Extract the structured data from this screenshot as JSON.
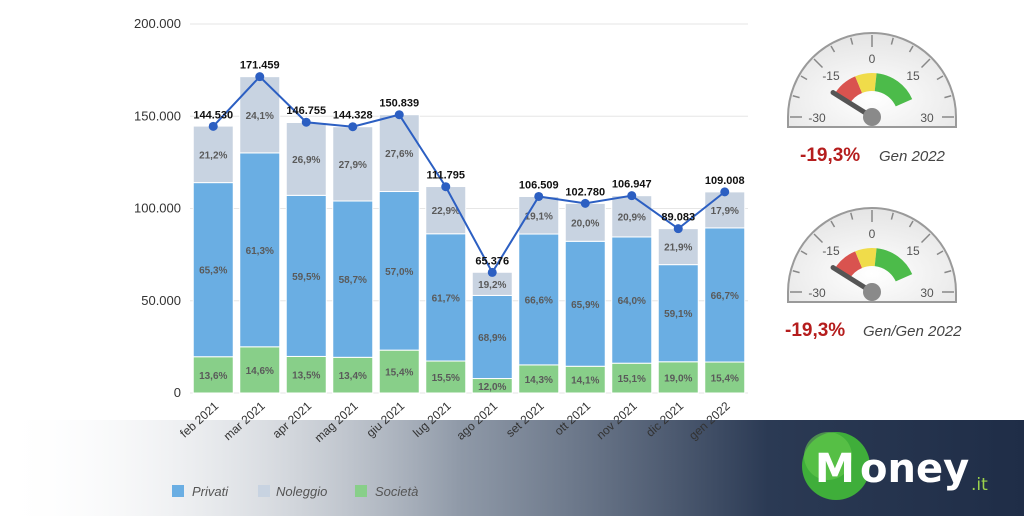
{
  "chart_data": {
    "type": "bar",
    "stacked": true,
    "categories": [
      "feb 2021",
      "mar 2021",
      "apr 2021",
      "mag 2021",
      "giu 2021",
      "lug 2021",
      "ago 2021",
      "set 2021",
      "ott 2021",
      "nov 2021",
      "dic 2021",
      "gen 2022"
    ],
    "series": [
      {
        "name": "Privati",
        "color": "#6aaee3",
        "labels": [
          "65,3%",
          "61,3%",
          "59,5%",
          "58,7%",
          "57,0%",
          "61,7%",
          "68,9%",
          "66,6%",
          "65,9%",
          "64,0%",
          "59,1%",
          "66,7%"
        ]
      },
      {
        "name": "Noleggio",
        "color": "#c8d3e1",
        "labels": [
          "21,2%",
          "24,1%",
          "26,9%",
          "27,9%",
          "27,6%",
          "22,9%",
          "19,2%",
          "19,1%",
          "20,0%",
          "20,9%",
          "21,9%",
          "17,9%"
        ]
      },
      {
        "name": "Società",
        "color": "#88cf89",
        "labels": [
          "13,6%",
          "14,6%",
          "13,5%",
          "13,4%",
          "15,4%",
          "15,5%",
          "12,0%",
          "14,3%",
          "14,1%",
          "15,1%",
          "19,0%",
          "15,4%"
        ]
      }
    ],
    "totals": [
      144530,
      171459,
      146755,
      144328,
      150839,
      111795,
      65376,
      106509,
      102780,
      106947,
      89083,
      109008
    ],
    "total_labels": [
      "144.530",
      "171.459",
      "146.755",
      "144.328",
      "150.839",
      "111.795",
      "65.376",
      "106.509",
      "102.780",
      "106.947",
      "89.083",
      "109.008"
    ],
    "line_series": {
      "color": "#2c5fc2"
    },
    "ylim": [
      0,
      200000
    ],
    "yticks": [
      "0",
      "50.000",
      "100.000",
      "150.000",
      "200.000"
    ],
    "grid": true,
    "legend_position": "bottom-left"
  },
  "gauges": [
    {
      "ticks": [
        "-30",
        "-15",
        "0",
        "15",
        "30"
      ],
      "value": "-19,3%",
      "value_num": -19.3,
      "caption": "Gen 2022"
    },
    {
      "ticks": [
        "-30",
        "-15",
        "0",
        "15",
        "30"
      ],
      "value": "-19,3%",
      "value_num": -19.3,
      "caption": "Gen/Gen 2022"
    }
  ],
  "logo": {
    "text": "oney",
    "suffix": ".it",
    "letter": "M"
  }
}
